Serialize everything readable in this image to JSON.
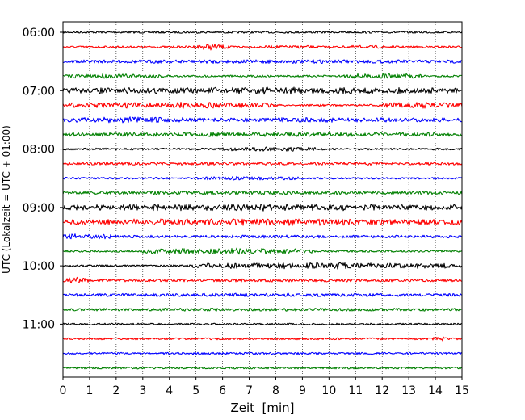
{
  "chart_data": {
    "type": "line",
    "title": "",
    "xlabel": "Zeit  [min]",
    "ylabel": "UTC (Lokalzeit = UTC + 01:00)",
    "xlim": [
      0,
      15
    ],
    "x_ticks": [
      "0",
      "1",
      "2",
      "3",
      "4",
      "5",
      "6",
      "7",
      "8",
      "9",
      "10",
      "11",
      "12",
      "13",
      "14",
      "15"
    ],
    "y_ticks": [
      "06:00",
      "07:00",
      "08:00",
      "09:00",
      "10:00",
      "11:00"
    ],
    "grid": "vertical dotted lines at each minute",
    "colors": {
      "black": "#000000",
      "red": "#ff0000",
      "blue": "#0000ff",
      "green": "#008000"
    },
    "color_cycle": [
      "black",
      "red",
      "blue",
      "green"
    ],
    "traces": [
      {
        "start": "06:00",
        "bursts": []
      },
      {
        "start": "06:15",
        "bursts": [
          [
            5.0,
            6.3,
            3
          ],
          [
            4.8,
            6.0,
            2
          ],
          [
            7.5,
            9.5,
            1
          ],
          [
            10.5,
            12.5,
            1
          ]
        ]
      },
      {
        "start": "06:30",
        "bursts": [
          [
            0,
            15,
            1.5
          ]
        ]
      },
      {
        "start": "06:45",
        "bursts": [
          [
            0,
            4,
            2
          ],
          [
            10.5,
            13.5,
            2.5
          ]
        ]
      },
      {
        "start": "07:00",
        "bursts": [
          [
            0,
            15,
            3.5
          ]
        ]
      },
      {
        "start": "07:15",
        "bursts": [
          [
            0,
            8,
            3
          ],
          [
            12,
            15,
            3
          ]
        ]
      },
      {
        "start": "07:30",
        "bursts": [
          [
            0,
            4.5,
            3
          ],
          [
            4.5,
            15,
            2
          ]
        ]
      },
      {
        "start": "07:45",
        "bursts": [
          [
            0,
            15,
            2
          ]
        ]
      },
      {
        "start": "08:00",
        "bursts": [
          [
            6,
            9.5,
            2
          ]
        ]
      },
      {
        "start": "08:15",
        "bursts": [
          [
            0,
            15,
            1
          ]
        ]
      },
      {
        "start": "08:30",
        "bursts": [
          [
            5,
            9,
            1.5
          ]
        ]
      },
      {
        "start": "08:45",
        "bursts": [
          [
            0,
            15,
            1.5
          ]
        ]
      },
      {
        "start": "09:00",
        "bursts": [
          [
            0,
            15,
            3.5
          ]
        ]
      },
      {
        "start": "09:15",
        "bursts": [
          [
            0,
            15,
            3.5
          ]
        ]
      },
      {
        "start": "09:30",
        "bursts": [
          [
            0,
            2,
            3
          ],
          [
            2,
            15,
            1
          ]
        ]
      },
      {
        "start": "09:45",
        "bursts": [
          [
            3,
            9.5,
            3
          ]
        ]
      },
      {
        "start": "10:00",
        "bursts": [
          [
            4.8,
            15,
            3
          ]
        ]
      },
      {
        "start": "10:15",
        "bursts": [
          [
            0,
            1,
            3
          ],
          [
            1,
            15,
            1
          ]
        ]
      },
      {
        "start": "10:30",
        "bursts": [
          [
            0,
            15,
            1.2
          ]
        ]
      },
      {
        "start": "10:45",
        "bursts": [
          [
            0,
            15,
            1
          ]
        ]
      },
      {
        "start": "11:00",
        "bursts": []
      },
      {
        "start": "11:15",
        "bursts": [
          [
            13.9,
            14.4,
            2
          ]
        ]
      },
      {
        "start": "11:30",
        "bursts": [
          [
            4.7,
            5.0,
            1.5
          ]
        ]
      },
      {
        "start": "11:45",
        "bursts": []
      }
    ]
  }
}
